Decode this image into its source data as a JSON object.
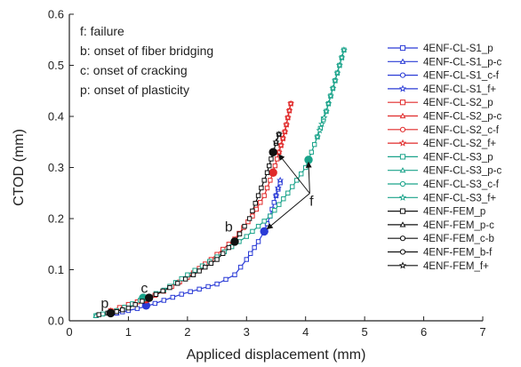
{
  "chart_data": {
    "type": "line",
    "title": "",
    "xlabel": "Appliced displacement (mm)",
    "ylabel": "CTOD (mm)",
    "xlim": [
      0,
      7
    ],
    "ylim": [
      0,
      0.6
    ],
    "xticks": [
      "0",
      "1",
      "2",
      "3",
      "4",
      "5",
      "6",
      "7"
    ],
    "yticks": [
      "0.0",
      "0.1",
      "0.2",
      "0.3",
      "0.4",
      "0.5",
      "0.6"
    ],
    "grid": false,
    "legend_position": "right",
    "annotation_lines": [
      "f: failure",
      "b: onset of fiber bridging",
      "c: onset of cracking",
      "p: onset of plasticity"
    ],
    "point_labels": [
      {
        "text": "p",
        "x": 0.6,
        "y": 0.025
      },
      {
        "text": "c",
        "x": 1.27,
        "y": 0.055
      },
      {
        "text": "b",
        "x": 2.7,
        "y": 0.175
      },
      {
        "text": "f",
        "x": 4.1,
        "y": 0.225
      }
    ],
    "series": [
      {
        "name": "4ENF-CL-S1_p",
        "color": "#2a3bd6",
        "marker": "square",
        "role": "curve",
        "points": [
          [
            0.8,
            0.015
          ],
          [
            1.0,
            0.02
          ],
          [
            1.3,
            0.028
          ],
          [
            1.6,
            0.04
          ],
          [
            1.9,
            0.052
          ],
          [
            2.2,
            0.062
          ],
          [
            2.5,
            0.072
          ],
          [
            2.8,
            0.09
          ],
          [
            3.0,
            0.12
          ],
          [
            3.2,
            0.155
          ],
          [
            3.3,
            0.175
          ],
          [
            3.4,
            0.205
          ],
          [
            3.5,
            0.245
          ],
          [
            3.57,
            0.27
          ]
        ]
      },
      {
        "name": "4ENF-CL-S1_p-c",
        "color": "#2a3bd6",
        "marker": "triangle",
        "role": "point",
        "points": [
          [
            0.8,
            0.015
          ]
        ]
      },
      {
        "name": "4ENF-CL-S1_c-f",
        "color": "#2a3bd6",
        "marker": "circle",
        "role": "point",
        "points": [
          [
            1.3,
            0.03
          ],
          [
            3.3,
            0.175
          ]
        ]
      },
      {
        "name": "4ENF-CL-S1_f+",
        "color": "#2a3bd6",
        "marker": "star",
        "role": "tail",
        "points": [
          [
            3.5,
            0.245
          ],
          [
            3.57,
            0.275
          ]
        ]
      },
      {
        "name": "4ENF-CL-S2_p",
        "color": "#e02a2a",
        "marker": "square",
        "role": "curve",
        "points": [
          [
            0.7,
            0.02
          ],
          [
            1.0,
            0.032
          ],
          [
            1.3,
            0.042
          ],
          [
            1.6,
            0.058
          ],
          [
            2.0,
            0.085
          ],
          [
            2.4,
            0.12
          ],
          [
            2.8,
            0.16
          ],
          [
            3.1,
            0.205
          ],
          [
            3.3,
            0.245
          ],
          [
            3.45,
            0.29
          ],
          [
            3.55,
            0.33
          ],
          [
            3.65,
            0.37
          ],
          [
            3.75,
            0.425
          ]
        ]
      },
      {
        "name": "4ENF-CL-S2_p-c",
        "color": "#e02a2a",
        "marker": "triangle",
        "role": "point",
        "points": [
          [
            0.7,
            0.02
          ]
        ]
      },
      {
        "name": "4ENF-CL-S2_c-f",
        "color": "#e02a2a",
        "marker": "circle",
        "role": "point",
        "points": [
          [
            1.3,
            0.042
          ],
          [
            3.45,
            0.29
          ]
        ]
      },
      {
        "name": "4ENF-CL-S2_f+",
        "color": "#e02a2a",
        "marker": "star",
        "role": "tail",
        "points": [
          [
            3.55,
            0.33
          ],
          [
            3.65,
            0.37
          ],
          [
            3.75,
            0.425
          ]
        ]
      },
      {
        "name": "4ENF-CL-S3_p",
        "color": "#1aa38a",
        "marker": "square",
        "role": "curve",
        "points": [
          [
            0.45,
            0.01
          ],
          [
            0.8,
            0.02
          ],
          [
            1.2,
            0.04
          ],
          [
            1.6,
            0.06
          ],
          [
            2.0,
            0.09
          ],
          [
            2.5,
            0.125
          ],
          [
            3.0,
            0.165
          ],
          [
            3.4,
            0.205
          ],
          [
            3.7,
            0.25
          ],
          [
            4.0,
            0.3
          ],
          [
            4.05,
            0.315
          ],
          [
            4.2,
            0.36
          ],
          [
            4.35,
            0.41
          ],
          [
            4.5,
            0.47
          ],
          [
            4.65,
            0.53
          ]
        ]
      },
      {
        "name": "4ENF-CL-S3_p-c",
        "color": "#1aa38a",
        "marker": "triangle",
        "role": "point",
        "points": [
          [
            0.45,
            0.01
          ]
        ]
      },
      {
        "name": "4ENF-CL-S3_c-f",
        "color": "#1aa38a",
        "marker": "circle",
        "role": "point",
        "points": [
          [
            1.25,
            0.045
          ],
          [
            4.05,
            0.315
          ]
        ]
      },
      {
        "name": "4ENF-CL-S3_f+",
        "color": "#1aa38a",
        "marker": "star",
        "role": "tail",
        "points": [
          [
            4.2,
            0.36
          ],
          [
            4.35,
            0.41
          ],
          [
            4.5,
            0.47
          ],
          [
            4.65,
            0.53
          ]
        ]
      },
      {
        "name": "4ENF-FEM_p",
        "color": "#111111",
        "marker": "square",
        "role": "curve",
        "points": [
          [
            0.5,
            0.012
          ],
          [
            0.8,
            0.018
          ],
          [
            1.0,
            0.025
          ],
          [
            1.35,
            0.045
          ],
          [
            1.7,
            0.065
          ],
          [
            2.1,
            0.09
          ],
          [
            2.5,
            0.12
          ],
          [
            2.8,
            0.155
          ],
          [
            3.05,
            0.2
          ],
          [
            3.2,
            0.245
          ],
          [
            3.35,
            0.29
          ],
          [
            3.45,
            0.33
          ],
          [
            3.55,
            0.365
          ]
        ]
      },
      {
        "name": "4ENF-FEM_p-c",
        "color": "#111111",
        "marker": "triangle",
        "role": "point",
        "points": [
          [
            0.7,
            0.015
          ]
        ]
      },
      {
        "name": "4ENF-FEM_c-b",
        "color": "#111111",
        "marker": "hollow-circle",
        "role": "point",
        "points": [
          [
            1.35,
            0.045
          ]
        ]
      },
      {
        "name": "4ENF-FEM_b-f",
        "color": "#111111",
        "marker": "circle",
        "role": "point",
        "points": [
          [
            0.7,
            0.015
          ],
          [
            1.35,
            0.045
          ],
          [
            2.8,
            0.155
          ],
          [
            3.45,
            0.33
          ]
        ]
      },
      {
        "name": "4ENF-FEM_f+",
        "color": "#111111",
        "marker": "star",
        "role": "tail",
        "points": [
          [
            3.5,
            0.35
          ],
          [
            3.55,
            0.365
          ]
        ]
      }
    ]
  }
}
